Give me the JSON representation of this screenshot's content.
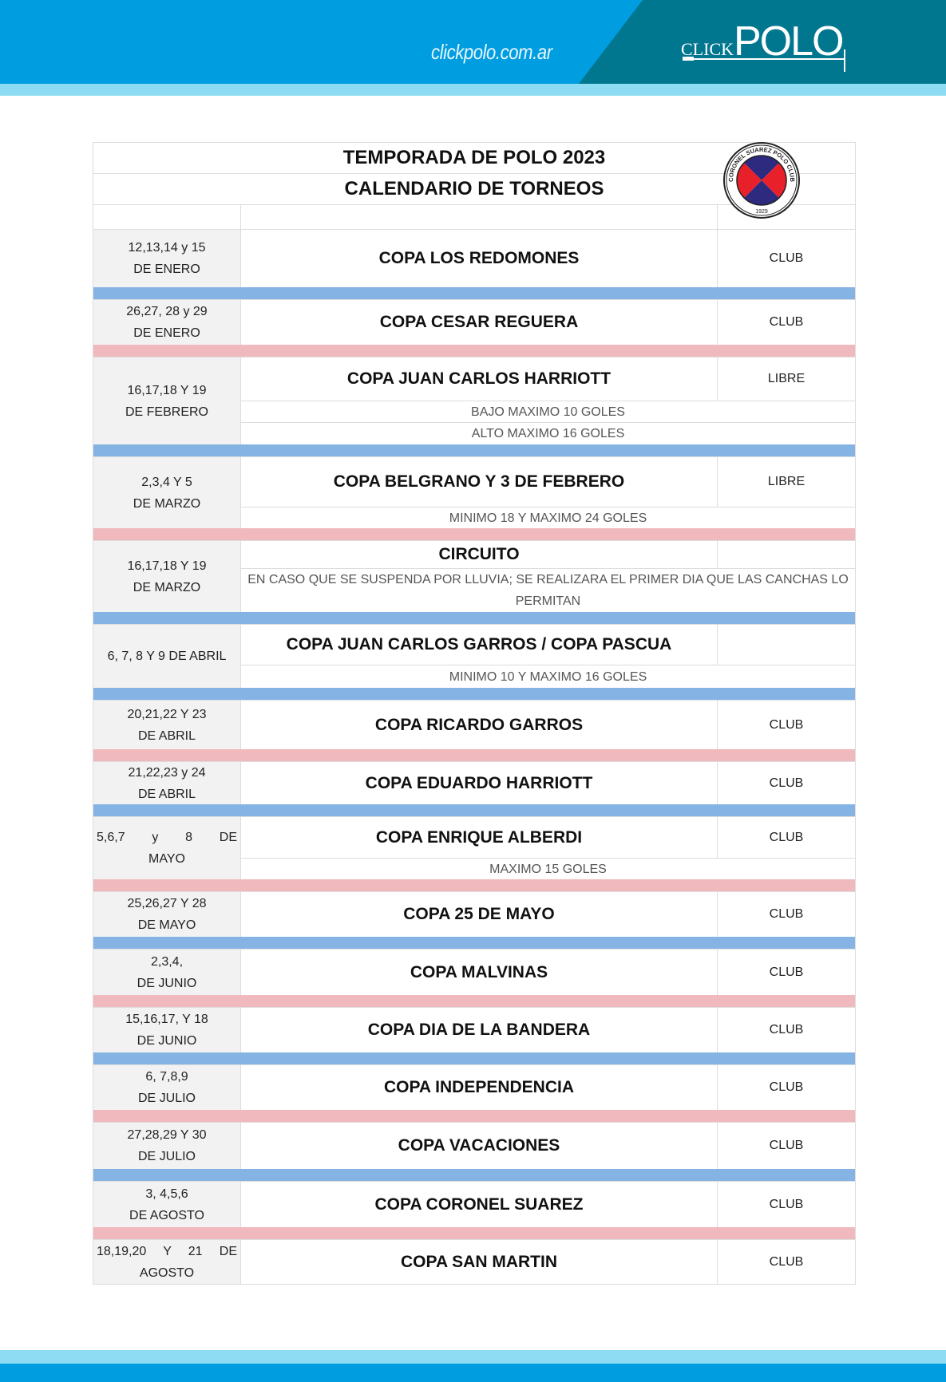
{
  "header": {
    "site_url": "clickpolo.com.ar",
    "brand_small": "CLICK",
    "brand_big": "POLO",
    "colors": {
      "bar": "#009ee0",
      "dark": "#00768f",
      "stripe": "#8edcf4"
    }
  },
  "document": {
    "title": "TEMPORADA DE POLO 2023",
    "subtitle": "CALENDARIO DE TORNEOS",
    "logo": {
      "text": "CORONEL SUAREZ POLO CLUB",
      "year": "1929",
      "colors": {
        "red": "#e8202a",
        "navy": "#2d2a80"
      }
    },
    "separator_colors": {
      "blue": "#85b3e4",
      "pink": "#f0b9bd"
    },
    "tournaments": [
      {
        "date1": "12,13,14 y 15",
        "date2": "DE ENERO",
        "name": "COPA LOS REDOMONES",
        "category": "CLUB",
        "notes": [],
        "sep": "blue"
      },
      {
        "date1": "26,27, 28 y 29",
        "date2": "DE  ENERO",
        "name": "COPA CESAR REGUERA",
        "category": "CLUB",
        "notes": [],
        "sep": "pink"
      },
      {
        "date1": "16,17,18 Y 19",
        "date2": "DE FEBRERO",
        "name": "COPA JUAN CARLOS HARRIOTT",
        "category": "LIBRE",
        "notes": [
          "BAJO MAXIMO 10 GOLES",
          "ALTO MAXIMO 16 GOLES"
        ],
        "sep": "blue"
      },
      {
        "date1": "2,3,4 Y 5",
        "date2": "DE MARZO",
        "name": "COPA BELGRANO Y 3 DE FEBRERO",
        "category": "LIBRE",
        "notes": [
          "MINIMO 18 Y MAXIMO 24 GOLES"
        ],
        "sep": "pink"
      },
      {
        "date1": "16,17,18 Y 19",
        "date2": "DE MARZO",
        "name": "CIRCUITO",
        "category": "",
        "notes": [
          "EN CASO QUE SE SUSPENDA POR LLUVIA; SE REALIZARA EL PRIMER DIA QUE LAS CANCHAS LO PERMITAN"
        ],
        "sep": "blue"
      },
      {
        "date1": "6, 7, 8 Y 9 DE ABRIL",
        "date2": "",
        "name": "COPA JUAN CARLOS GARROS  / COPA PASCUA",
        "category": "",
        "notes": [
          "MINIMO 10 Y MAXIMO 16 GOLES"
        ],
        "sep": "blue"
      },
      {
        "date1": "20,21,22 Y 23",
        "date2": "DE ABRIL",
        "name": "COPA RICARDO GARROS",
        "category": "CLUB",
        "notes": [],
        "sep": "pink"
      },
      {
        "date1": "21,22,23 y 24",
        "date2": "DE  ABRIL",
        "name": "COPA EDUARDO HARRIOTT",
        "category": "CLUB",
        "notes": [],
        "sep": "blue"
      },
      {
        "date1": "5,6,7 y 8 DE",
        "date2": "MAYO",
        "name": "COPA ENRIQUE ALBERDI",
        "category": "CLUB",
        "notes": [
          "MAXIMO 15 GOLES"
        ],
        "sep": "pink",
        "justify": true
      },
      {
        "date1": "25,26,27 Y 28",
        "date2": "DE MAYO",
        "name": "COPA 25 DE MAYO",
        "category": "CLUB",
        "notes": [],
        "sep": "blue"
      },
      {
        "date1": "2,3,4,",
        "date2": "DE JUNIO",
        "name": "COPA MALVINAS",
        "category": "CLUB",
        "notes": [],
        "sep": "pink"
      },
      {
        "date1": "15,16,17, Y 18",
        "date2": "DE JUNIO",
        "name": "COPA DIA DE LA BANDERA",
        "category": "CLUB",
        "notes": [],
        "sep": "blue"
      },
      {
        "date1": "6, 7,8,9",
        "date2": "DE JULIO",
        "name": "COPA INDEPENDENCIA",
        "category": "CLUB",
        "notes": [],
        "sep": "pink"
      },
      {
        "date1": "27,28,29 Y 30",
        "date2": "DE JULIO",
        "name": "COPA VACACIONES",
        "category": "CLUB",
        "notes": [],
        "sep": "blue"
      },
      {
        "date1": "3, 4,5,6",
        "date2": "DE AGOSTO",
        "name": "COPA CORONEL SUAREZ",
        "category": "CLUB",
        "notes": [],
        "sep": "pink"
      },
      {
        "date1": "18,19,20 Y 21 DE",
        "date2": "AGOSTO",
        "name": "COPA SAN MARTIN",
        "category": "CLUB",
        "notes": [],
        "sep": "",
        "justify": true
      }
    ]
  }
}
